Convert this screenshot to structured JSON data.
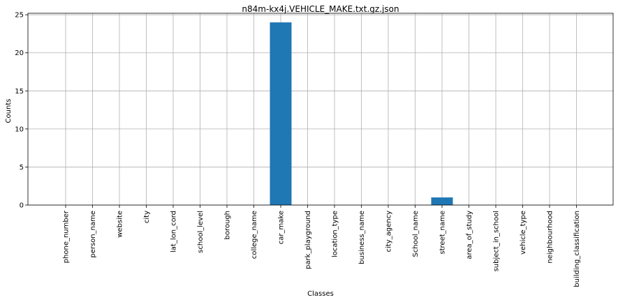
{
  "chart_data": {
    "type": "bar",
    "title": "n84m-kx4j.VEHICLE_MAKE.txt.gz.json",
    "xlabel": "Classes",
    "ylabel": "Counts",
    "categories": [
      "phone_number",
      "person_name",
      "website",
      "city",
      "lat_lon_cord",
      "school_level",
      "borough",
      "college_name",
      "car_make",
      "park_playground",
      "location_type",
      "business_name",
      "city_agency",
      "School_name",
      "street_name",
      "area_of_study",
      "subject_in_school",
      "vehicle_type",
      "neighbourhood",
      "building_classification"
    ],
    "values": [
      0,
      0,
      0,
      0,
      0,
      0,
      0,
      0,
      24,
      0,
      0,
      0,
      0,
      0,
      1,
      0,
      0,
      0,
      0,
      0
    ],
    "yticks": [
      0,
      5,
      10,
      15,
      20,
      25
    ],
    "ylim": [
      0,
      25.2
    ],
    "grid": true,
    "bar_color": "#1f77b4"
  }
}
